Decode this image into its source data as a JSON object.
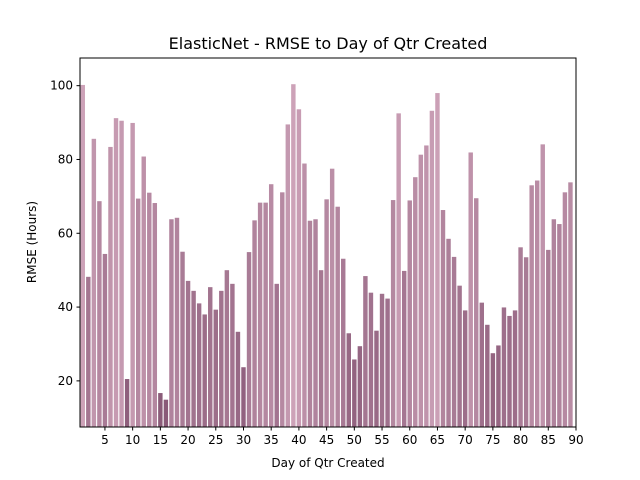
{
  "chart_data": {
    "type": "bar",
    "title": "ElasticNet - RMSE to Day of Qtr Created",
    "xlabel": "Day of Qtr Created",
    "ylabel": "RMSE (Hours)",
    "ylim": [
      7.5,
      107.5
    ],
    "xlim": [
      0.5,
      90
    ],
    "yticks": [
      20,
      40,
      60,
      80,
      100
    ],
    "xticks": [
      5,
      10,
      15,
      20,
      25,
      30,
      35,
      40,
      45,
      50,
      55,
      60,
      65,
      70,
      75,
      80,
      85,
      90
    ],
    "grid": false,
    "legend": "none",
    "colors": {
      "low": "#8a5a78",
      "high": "#cda2b8",
      "axis": "#000000"
    },
    "x": [
      1,
      2,
      3,
      4,
      5,
      6,
      7,
      8,
      9,
      10,
      11,
      12,
      13,
      14,
      15,
      16,
      17,
      18,
      19,
      20,
      21,
      22,
      23,
      24,
      25,
      26,
      27,
      28,
      29,
      30,
      31,
      32,
      33,
      34,
      35,
      36,
      37,
      38,
      39,
      40,
      41,
      42,
      43,
      44,
      45,
      46,
      47,
      48,
      49,
      50,
      51,
      52,
      53,
      54,
      55,
      56,
      57,
      58,
      59,
      60,
      61,
      62,
      63,
      64,
      65,
      66,
      67,
      68,
      69,
      70,
      71,
      72,
      73,
      74,
      75,
      76,
      77,
      78,
      79,
      80,
      81,
      82,
      83,
      84,
      85,
      86,
      87,
      88,
      89
    ],
    "values": [
      100.2,
      48.2,
      85.6,
      68.7,
      54.4,
      83.4,
      91.2,
      90.5,
      20.5,
      89.9,
      69.4,
      80.8,
      71.0,
      68.2,
      16.7,
      14.9,
      63.8,
      64.2,
      55.0,
      47.1,
      44.4,
      41.0,
      38.0,
      45.4,
      39.3,
      44.4,
      50.0,
      46.3,
      33.3,
      23.7,
      54.9,
      63.5,
      68.3,
      68.3,
      73.3,
      46.3,
      71.1,
      89.5,
      100.4,
      93.6,
      78.9,
      63.4,
      63.8,
      50.0,
      69.2,
      77.5,
      67.2,
      53.1,
      32.9,
      25.8,
      29.4,
      48.4,
      43.9,
      33.6,
      43.6,
      42.3,
      69.0,
      92.5,
      49.8,
      68.9,
      75.2,
      81.3,
      83.8,
      93.2,
      98.0,
      66.3,
      58.5,
      53.6,
      45.8,
      39.1,
      81.9,
      69.5,
      41.2,
      35.2,
      27.5,
      29.6,
      39.9,
      37.6,
      39.1,
      56.2,
      53.5,
      73.0,
      74.3,
      84.1,
      55.5,
      63.8,
      62.5,
      71.1,
      73.8
    ]
  }
}
